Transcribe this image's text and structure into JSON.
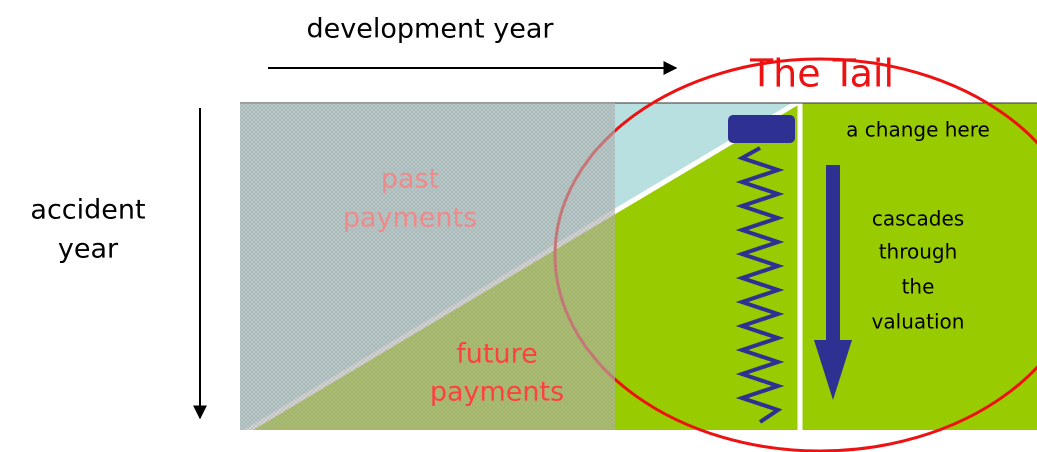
{
  "top_label": "development year",
  "left_label": [
    "accident",
    "year"
  ],
  "tail_label": "The Tail",
  "past_label": [
    "past",
    "payments"
  ],
  "future_label": [
    "future",
    "payments"
  ],
  "change_label": "a change here",
  "cascade_label": [
    "cascades",
    "through",
    "the",
    "valuation"
  ]
}
